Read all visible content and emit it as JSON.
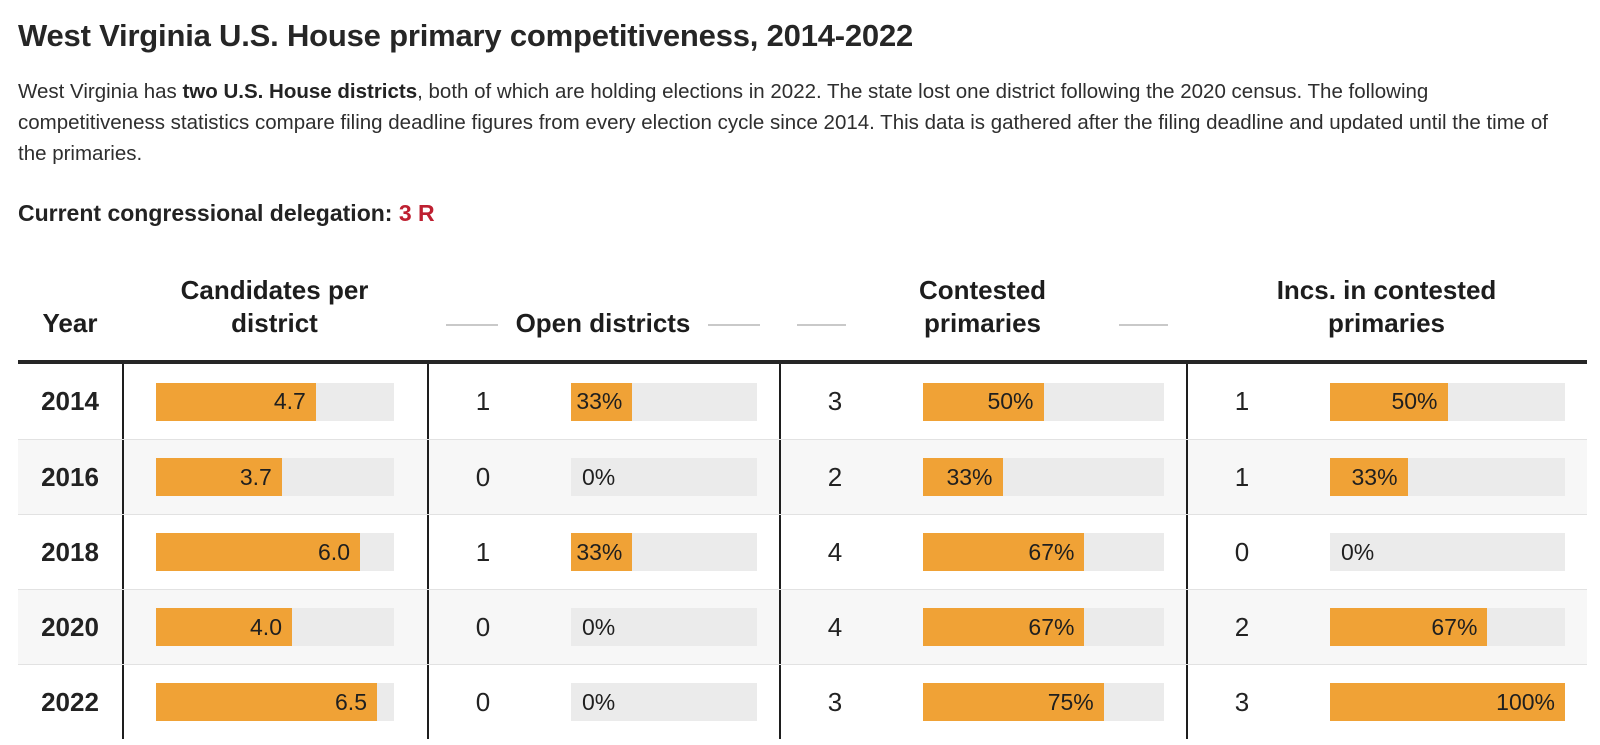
{
  "page": {
    "title": "West Virginia U.S. House primary competitiveness, 2014-2022",
    "intro_prefix": "West Virginia has ",
    "intro_bold": "two U.S. House districts",
    "intro_suffix": ", both of which are holding elections in 2022. The state lost one district following the 2020 census. The following competitiveness statistics compare filing deadline figures from every election cycle since 2014. This data is gathered after the filing deadline and updated until the time of the primaries.",
    "delegation_label": "Current congressional delegation: ",
    "delegation_value": "3 R"
  },
  "colors": {
    "orange": "#F0A236",
    "track": "#EBEBEB",
    "red": "#BE2031",
    "alt": "#F7F7F7",
    "divider": "#1E1E1E",
    "rule": "#262626"
  },
  "table": {
    "headers": [
      {
        "label": "Year",
        "dashes": false
      },
      {
        "label": "Candidates per district",
        "dashes": false
      },
      {
        "label": "Open districts",
        "dashes": true
      },
      {
        "label": "Contested primaries",
        "dashes": true
      },
      {
        "label": "Incs. in contested primaries",
        "dashes": false
      }
    ],
    "rows": [
      {
        "year": "2014",
        "cpd": {
          "label": "4.7",
          "value": 4.7,
          "max": 7
        },
        "open": {
          "count": "1",
          "label": "33%",
          "value": 33,
          "max": 100
        },
        "contested": {
          "count": "3",
          "label": "50%",
          "value": 50,
          "max": 100
        },
        "incs": {
          "count": "1",
          "label": "50%",
          "value": 50,
          "max": 100
        }
      },
      {
        "year": "2016",
        "cpd": {
          "label": "3.7",
          "value": 3.7,
          "max": 7
        },
        "open": {
          "count": "0",
          "label": "0%",
          "value": 0,
          "max": 100
        },
        "contested": {
          "count": "2",
          "label": "33%",
          "value": 33,
          "max": 100
        },
        "incs": {
          "count": "1",
          "label": "33%",
          "value": 33,
          "max": 100
        }
      },
      {
        "year": "2018",
        "cpd": {
          "label": "6.0",
          "value": 6.0,
          "max": 7
        },
        "open": {
          "count": "1",
          "label": "33%",
          "value": 33,
          "max": 100
        },
        "contested": {
          "count": "4",
          "label": "67%",
          "value": 67,
          "max": 100
        },
        "incs": {
          "count": "0",
          "label": "0%",
          "value": 0,
          "max": 100
        }
      },
      {
        "year": "2020",
        "cpd": {
          "label": "4.0",
          "value": 4.0,
          "max": 7
        },
        "open": {
          "count": "0",
          "label": "0%",
          "value": 0,
          "max": 100
        },
        "contested": {
          "count": "4",
          "label": "67%",
          "value": 67,
          "max": 100
        },
        "incs": {
          "count": "2",
          "label": "67%",
          "value": 67,
          "max": 100
        }
      },
      {
        "year": "2022",
        "cpd": {
          "label": "6.5",
          "value": 6.5,
          "max": 7
        },
        "open": {
          "count": "0",
          "label": "0%",
          "value": 0,
          "max": 100
        },
        "contested": {
          "count": "3",
          "label": "75%",
          "value": 75,
          "max": 100
        },
        "incs": {
          "count": "3",
          "label": "100%",
          "value": 100,
          "max": 100
        }
      }
    ]
  },
  "chart_data": {
    "type": "table",
    "title": "West Virginia U.S. House primary competitiveness, 2014-2022",
    "columns": [
      "Year",
      "Candidates per district",
      "Open districts",
      "Contested primaries",
      "Incs. in contested primaries"
    ],
    "categories": [
      "2014",
      "2016",
      "2018",
      "2020",
      "2022"
    ],
    "series": [
      {
        "name": "Candidates per district",
        "values": [
          4.7,
          3.7,
          6.0,
          4.0,
          6.5
        ],
        "bar_axis_max": 7
      },
      {
        "name": "Open districts (count)",
        "values": [
          1,
          0,
          1,
          0,
          0
        ]
      },
      {
        "name": "Open districts (%)",
        "values": [
          33,
          0,
          33,
          0,
          0
        ],
        "unit": "%",
        "bar_axis_max": 100
      },
      {
        "name": "Contested primaries (count)",
        "values": [
          3,
          2,
          4,
          4,
          3
        ]
      },
      {
        "name": "Contested primaries (%)",
        "values": [
          50,
          33,
          67,
          67,
          75
        ],
        "unit": "%",
        "bar_axis_max": 100
      },
      {
        "name": "Incs. in contested primaries (count)",
        "values": [
          1,
          1,
          0,
          2,
          3
        ]
      },
      {
        "name": "Incs. in contested primaries (%)",
        "values": [
          50,
          33,
          0,
          67,
          100
        ],
        "unit": "%",
        "bar_axis_max": 100
      }
    ],
    "bar_color": "#F0A236",
    "track_color": "#EBEBEB",
    "legend_position": "none",
    "grid": false
  }
}
